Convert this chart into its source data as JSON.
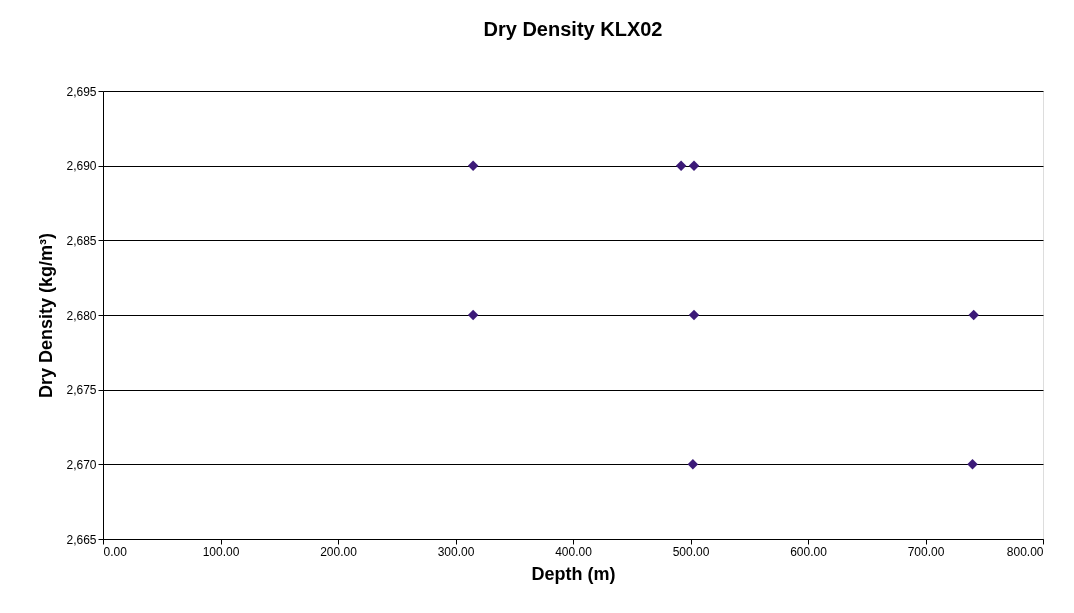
{
  "chart_data": {
    "type": "scatter",
    "title": "Dry Density KLX02",
    "xlabel": "Depth (m)",
    "ylabel": "Dry Density (kg/m³)",
    "x": [
      315,
      492,
      503,
      315,
      503,
      741,
      502,
      740
    ],
    "series": [
      {
        "color": "#3c1a78",
        "values": [
          2690,
          2690,
          2690,
          2680,
          2680,
          2680,
          2670,
          2670
        ]
      }
    ],
    "xlim": [
      0,
      800
    ],
    "xticks": [
      {
        "value": 0,
        "label": "0.00"
      },
      {
        "value": 100,
        "label": "100.00"
      },
      {
        "value": 200,
        "label": "200.00"
      },
      {
        "value": 300,
        "label": "300.00"
      },
      {
        "value": 400,
        "label": "400.00"
      },
      {
        "value": 500,
        "label": "500.00"
      },
      {
        "value": 600,
        "label": "600.00"
      },
      {
        "value": 700,
        "label": "700.00"
      },
      {
        "value": 800,
        "label": "800.00"
      }
    ],
    "ylim": [
      2665,
      2695
    ],
    "yticks": [
      {
        "value": 2665,
        "label": "2,665"
      },
      {
        "value": 2670,
        "label": "2,670"
      },
      {
        "value": 2675,
        "label": "2,675"
      },
      {
        "value": 2680,
        "label": "2,680"
      },
      {
        "value": 2685,
        "label": "2,685"
      },
      {
        "value": 2690,
        "label": "2,690"
      },
      {
        "value": 2695,
        "label": "2,695"
      }
    ],
    "grid": "y",
    "marker": "diamond",
    "legend": false
  }
}
